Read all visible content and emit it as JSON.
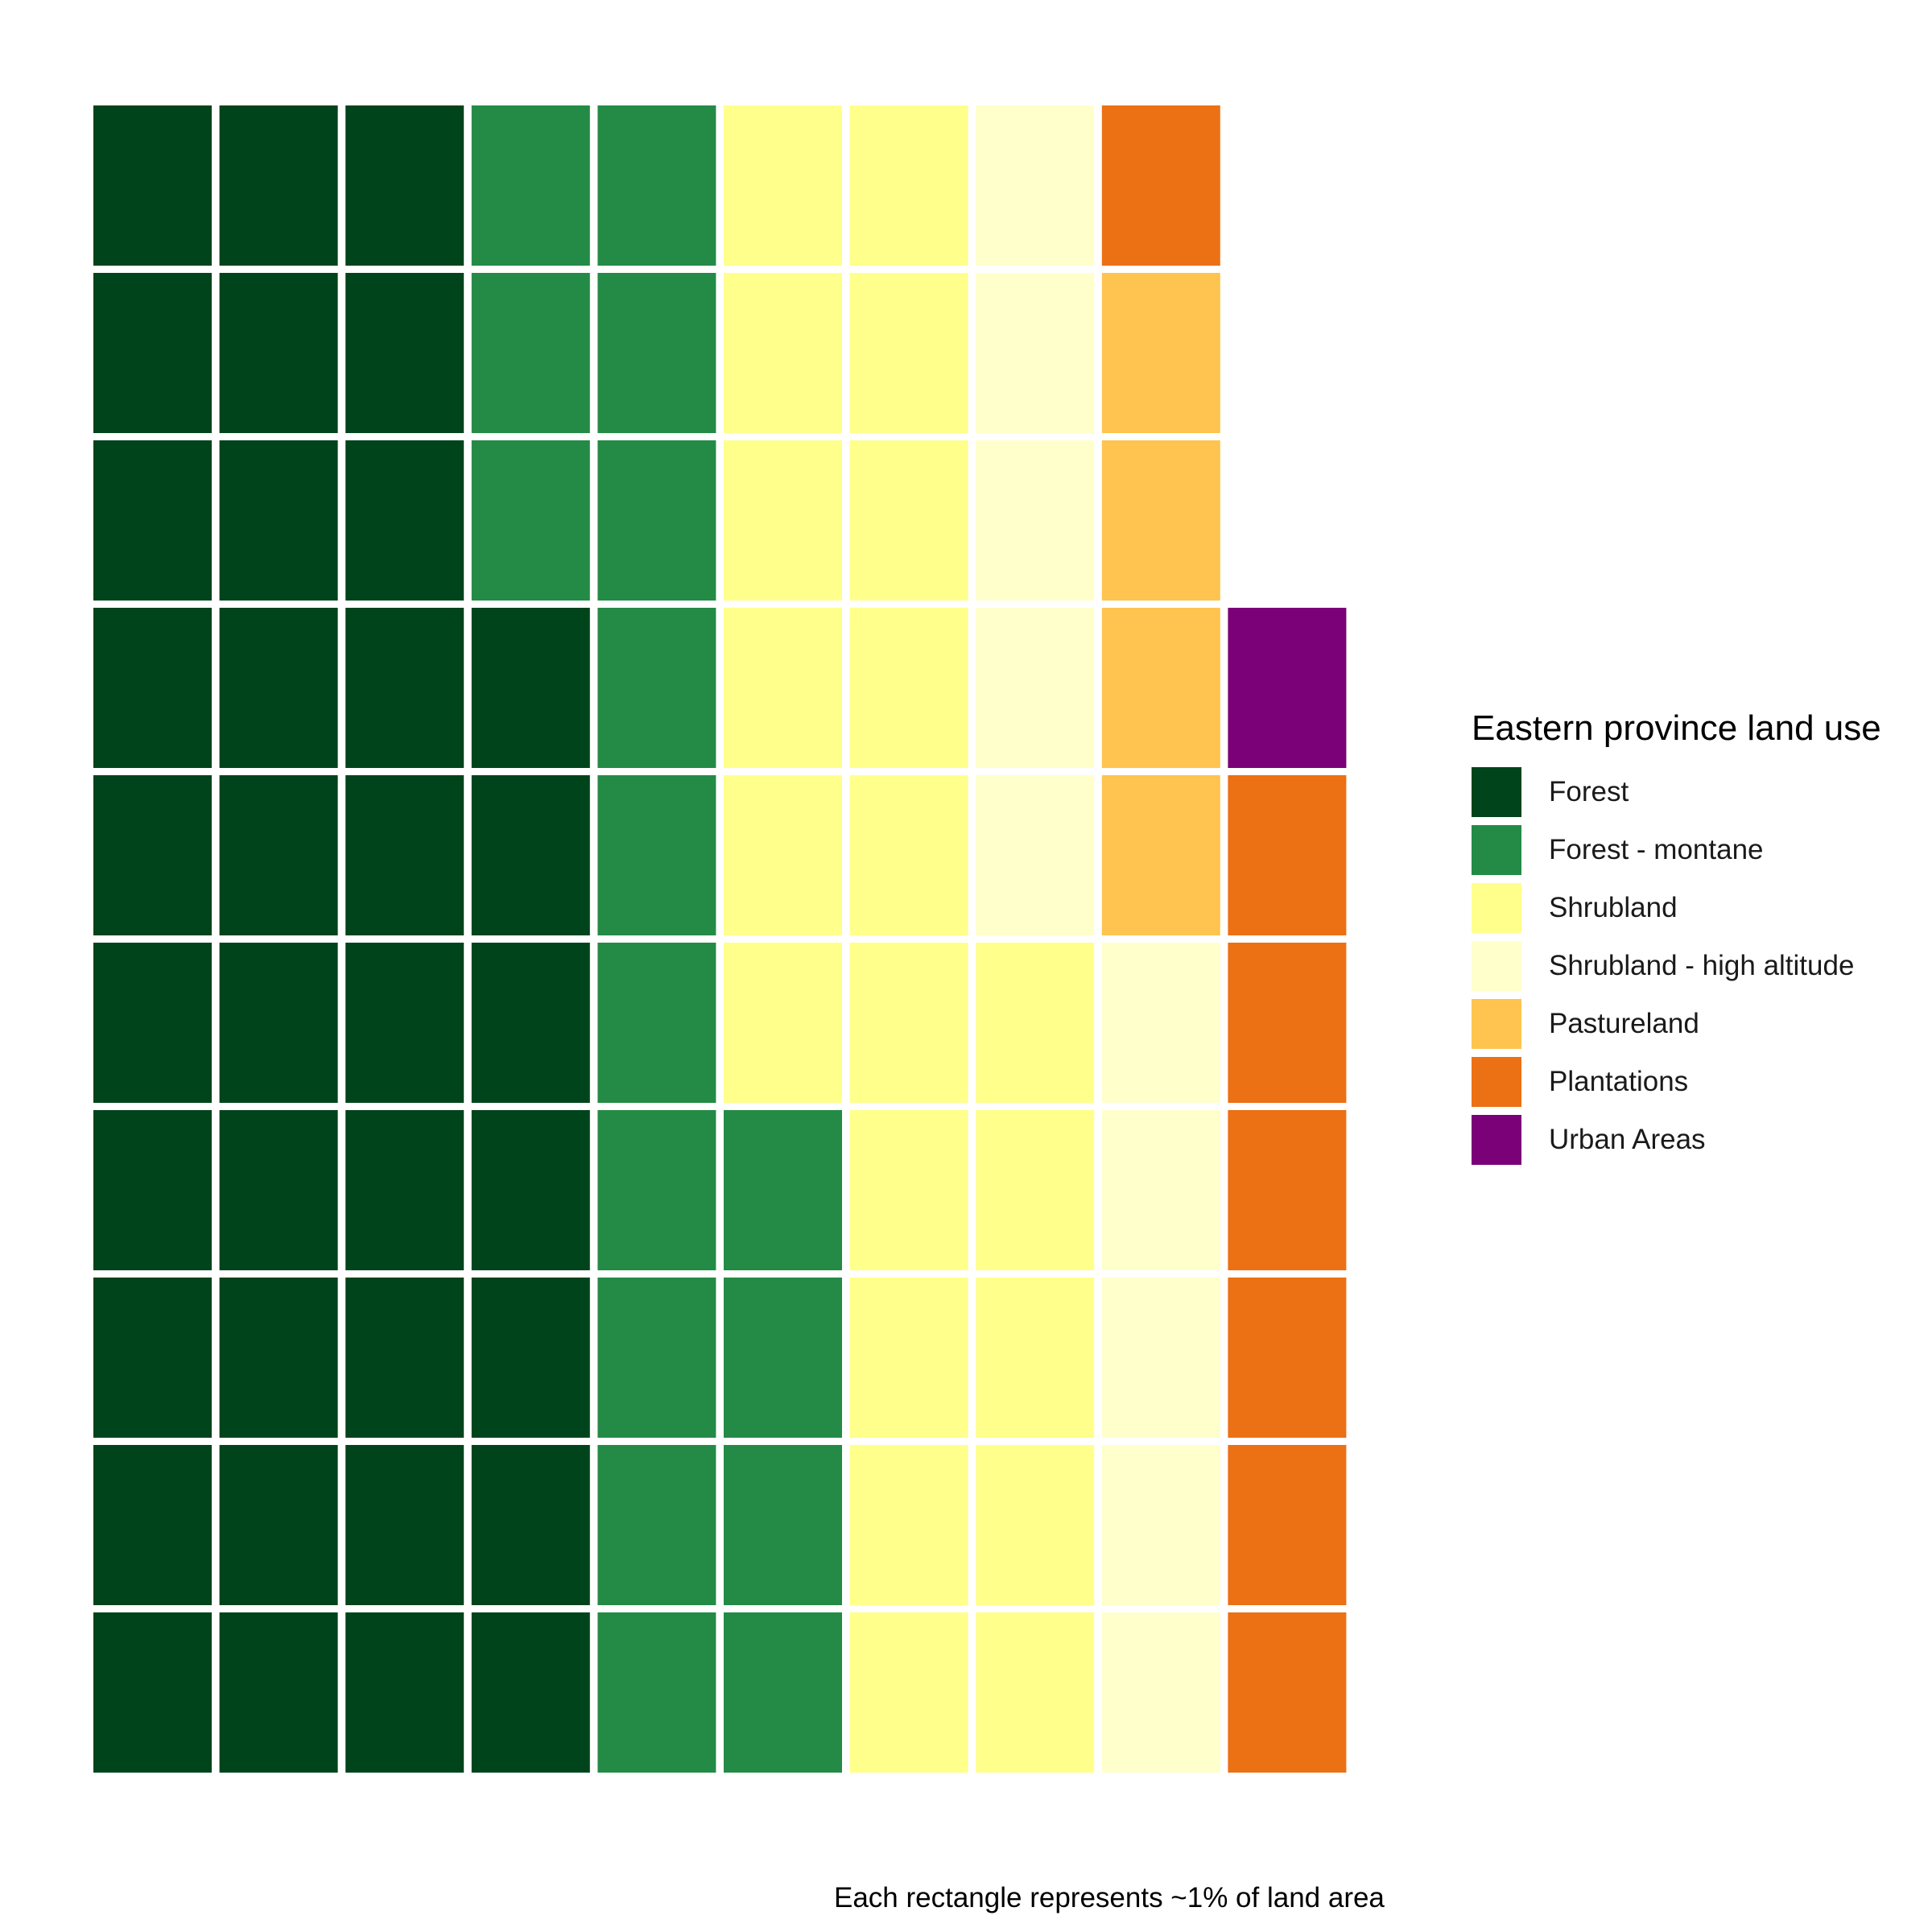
{
  "chart_data": {
    "type": "waffle",
    "rows": 10,
    "columns": 10,
    "fill_order": "column-major, bottom-to-top, left-to-right",
    "legend": {
      "title": "Eastern province land use",
      "placement": "right"
    },
    "caption": "Each rectangle represents ~1% of land area",
    "categories": [
      {
        "name": "Forest",
        "value": 37,
        "color": "#00441b"
      },
      {
        "name": "Forest - montane",
        "value": 17,
        "color": "#238b45"
      },
      {
        "name": "Shrubland",
        "value": 21,
        "color": "#ffff8c"
      },
      {
        "name": "Shrubland - high altitude",
        "value": 10,
        "color": "#ffffcc"
      },
      {
        "name": "Pastureland",
        "value": 4,
        "color": "#fec44f"
      },
      {
        "name": "Plantations",
        "value": 7,
        "color": "#ec7014"
      },
      {
        "name": "Urban Areas",
        "value": 1,
        "color": "#7a0177"
      }
    ]
  }
}
